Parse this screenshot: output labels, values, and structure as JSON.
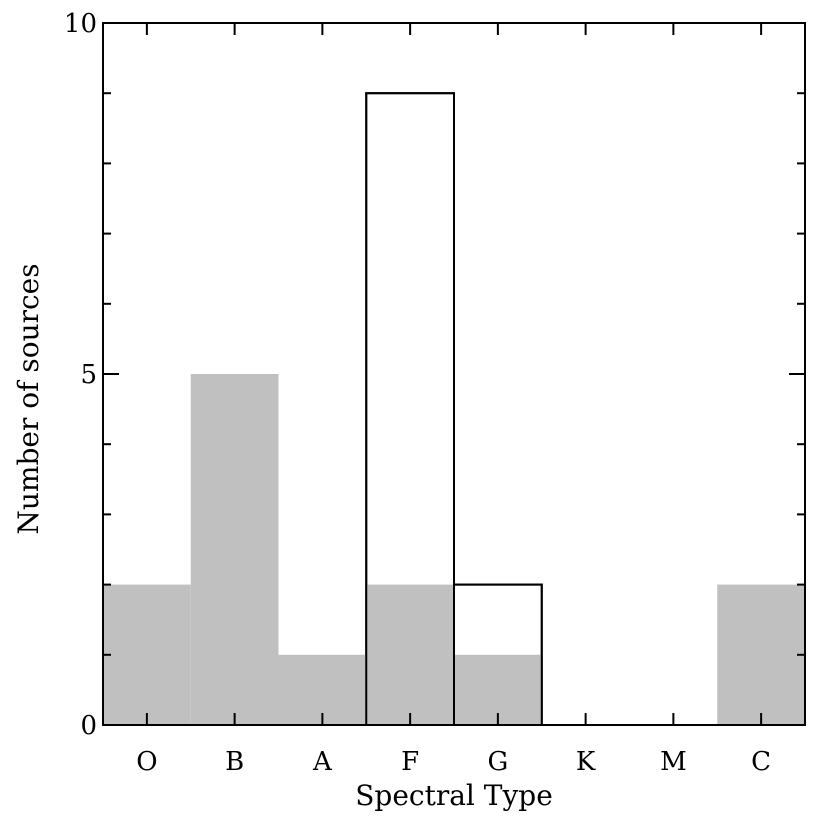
{
  "chart_data": {
    "type": "bar",
    "categories": [
      "O",
      "B",
      "A",
      "F",
      "G",
      "K",
      "M",
      "C"
    ],
    "series": [
      {
        "values": [
          0,
          0,
          0,
          9,
          2,
          0,
          0,
          0
        ],
        "style": "outline"
      },
      {
        "values": [
          2,
          5,
          1,
          2,
          1,
          0,
          0,
          2
        ],
        "style": "filled"
      }
    ],
    "xlabel": "Spectral Type",
    "ylabel": "Number of sources",
    "ylim": [
      0,
      10
    ],
    "yticks_major": [
      0,
      5,
      10
    ],
    "yticks_minor_step": 1,
    "grid": false,
    "colors": {
      "filled": "#c0c0c0",
      "outline": "#000000",
      "axes": "#000000"
    }
  }
}
